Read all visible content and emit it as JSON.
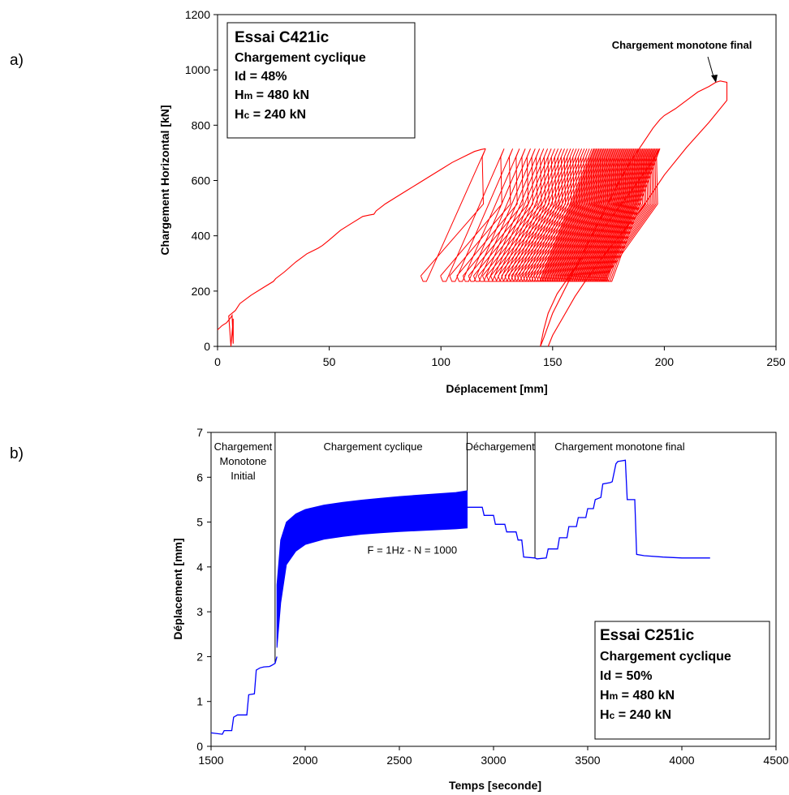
{
  "chart_data": [
    {
      "panel_label": "a)",
      "type": "line",
      "xlabel": "Déplacement [mm]",
      "ylabel": "Chargement Horizontal  [kN]",
      "xlim": [
        0,
        250
      ],
      "ylim": [
        0,
        1200
      ],
      "xticks": [
        "0",
        "50",
        "100",
        "150",
        "200",
        "250"
      ],
      "yticks": [
        "0",
        "200",
        "400",
        "600",
        "800",
        "1000",
        "1200"
      ],
      "grid": false,
      "series_color": "#ff0000",
      "legend_box": {
        "title": "Essai C421ic",
        "lines": [
          "Chargement cyclique",
          "Id = 48%"
        ],
        "hm_main": "H",
        "hm_sub": "m",
        "hm_rest": " = 480 kN",
        "hc_main": "H",
        "hc_sub": "c",
        "hc_rest": " = 240 kN"
      },
      "annotation": {
        "text": "Chargement monotone final",
        "x": 225,
        "y": 960
      },
      "initial_loading": {
        "x": [
          0,
          2,
          4,
          5,
          6,
          6.5,
          7,
          7,
          6,
          5,
          8,
          10,
          15,
          20,
          25,
          26,
          30,
          35,
          40,
          45,
          47,
          50,
          55,
          60,
          65,
          68,
          70,
          71,
          75,
          80,
          85,
          90,
          95,
          100,
          105,
          110,
          115,
          118,
          120
        ],
        "y": [
          60,
          75,
          85,
          95,
          105,
          112,
          10,
          100,
          0,
          110,
          130,
          155,
          185,
          210,
          235,
          245,
          270,
          305,
          335,
          355,
          365,
          385,
          420,
          445,
          470,
          475,
          478,
          490,
          515,
          540,
          565,
          590,
          615,
          640,
          665,
          685,
          705,
          712,
          715
        ]
      },
      "cycles": {
        "count": 60,
        "first_lower_x": 91,
        "last_lower_x": 174,
        "first_upper_x": 120,
        "last_upper_x": 198,
        "unloading_dx": 29,
        "h_max": 715,
        "h_min": 235
      },
      "unloading": {
        "x": [
          198,
          193,
          185,
          175,
          165,
          158,
          152,
          148,
          146,
          145,
          144.5
        ],
        "y": [
          715,
          650,
          560,
          450,
          340,
          260,
          190,
          120,
          60,
          20,
          0
        ]
      },
      "final_loading": {
        "x": [
          144.5,
          146,
          150,
          155,
          160,
          165,
          170,
          175,
          180,
          185,
          190,
          195,
          198,
          200,
          205,
          210,
          215,
          220,
          223,
          225,
          228,
          228,
          220,
          210,
          200,
          190,
          180,
          170,
          160,
          155,
          150,
          148
        ],
        "y": [
          0,
          30,
          120,
          200,
          280,
          360,
          440,
          520,
          600,
          670,
          730,
          790,
          820,
          835,
          860,
          890,
          920,
          940,
          955,
          960,
          955,
          890,
          810,
          720,
          620,
          500,
          400,
          300,
          180,
          110,
          40,
          0
        ]
      }
    },
    {
      "panel_label": "b)",
      "type": "line",
      "xlabel": "Temps [seconde]",
      "ylabel": "Déplacement [mm]",
      "xlim": [
        1500,
        4500
      ],
      "ylim": [
        0,
        7
      ],
      "xticks": [
        "1500",
        "2000",
        "2500",
        "3000",
        "3500",
        "4000",
        "4500"
      ],
      "yticks": [
        "0",
        "1",
        "2",
        "3",
        "4",
        "5",
        "6",
        "7"
      ],
      "grid": false,
      "series_color": "#0000ff",
      "phase_dividers_x": [
        1840,
        2860,
        3220
      ],
      "phase_labels": [
        {
          "lines": [
            "Chargement",
            "Monotone",
            "Initial"
          ],
          "x": 1670
        },
        {
          "lines": [
            "Chargement cyclique"
          ],
          "x": 2360
        },
        {
          "lines": [
            "Déchargement"
          ],
          "x": 3035
        },
        {
          "lines": [
            "Chargement monotone final"
          ],
          "x": 3670
        }
      ],
      "cycle_annotation": {
        "text": "F = 1Hz - N = 1000",
        "x": 2330,
        "y": 4.3
      },
      "legend_box": {
        "title": "Essai C251ic",
        "lines": [
          "Chargement cyclique",
          "Id = 50%"
        ],
        "hm_main": "H",
        "hm_sub": "m",
        "hm_rest": " = 480 kN",
        "hc_main": "H",
        "hc_sub": "c",
        "hc_rest": " = 240 kN"
      },
      "staircase_initial": {
        "x": [
          1500,
          1560,
          1570,
          1610,
          1620,
          1640,
          1650,
          1690,
          1700,
          1730,
          1740,
          1760,
          1780,
          1810,
          1820,
          1840,
          1850
        ],
        "y": [
          0.3,
          0.27,
          0.35,
          0.35,
          0.65,
          0.7,
          0.7,
          0.7,
          1.15,
          1.17,
          1.7,
          1.75,
          1.77,
          1.78,
          1.8,
          1.85,
          2.0
        ]
      },
      "cyclic_envelope": {
        "x": [
          1850,
          1870,
          1900,
          1950,
          2000,
          2100,
          2200,
          2300,
          2400,
          2500,
          2600,
          2700,
          2800,
          2860
        ],
        "upper": [
          3.6,
          4.6,
          5.0,
          5.18,
          5.28,
          5.38,
          5.44,
          5.49,
          5.53,
          5.57,
          5.6,
          5.63,
          5.66,
          5.7
        ],
        "lower": [
          2.2,
          3.2,
          4.05,
          4.35,
          4.5,
          4.62,
          4.68,
          4.73,
          4.76,
          4.79,
          4.81,
          4.83,
          4.85,
          4.87
        ]
      },
      "decharge_and_final": {
        "x": [
          2860,
          2940,
          2950,
          3000,
          3010,
          3060,
          3070,
          3120,
          3130,
          3150,
          3160,
          3220,
          3230,
          3280,
          3290,
          3340,
          3350,
          3390,
          3400,
          3440,
          3450,
          3490,
          3500,
          3530,
          3540,
          3570,
          3580,
          3620,
          3630,
          3650,
          3660,
          3700,
          3710,
          3750,
          3760,
          3800,
          3900,
          4000,
          4150
        ],
        "y": [
          5.33,
          5.33,
          5.15,
          5.15,
          4.95,
          4.95,
          4.78,
          4.78,
          4.6,
          4.6,
          4.22,
          4.2,
          4.18,
          4.2,
          4.4,
          4.4,
          4.65,
          4.65,
          4.9,
          4.9,
          5.1,
          5.1,
          5.3,
          5.3,
          5.5,
          5.55,
          5.85,
          5.88,
          5.9,
          6.3,
          6.35,
          6.38,
          5.5,
          5.5,
          4.28,
          4.25,
          4.22,
          4.2,
          4.2
        ]
      }
    }
  ]
}
